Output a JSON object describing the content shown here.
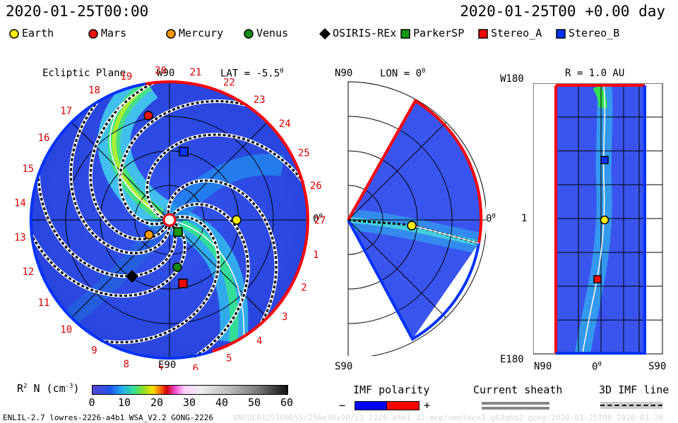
{
  "header": {
    "left_datetime": "2020-01-25T00:00",
    "right_datetime": "2020-01-25T00 +0.00 day"
  },
  "legend": {
    "items": [
      {
        "label": "Earth",
        "icon": "circle",
        "color": "#ffee00"
      },
      {
        "label": "Mars",
        "icon": "circle",
        "color": "#ee1111"
      },
      {
        "label": "Mercury",
        "icon": "circle",
        "color": "#ff9900"
      },
      {
        "label": "Venus",
        "icon": "circle",
        "color": "#118811"
      },
      {
        "label": "OSIRIS-REx",
        "icon": "diamond",
        "color": "#000000"
      },
      {
        "label": "ParkerSP",
        "icon": "square",
        "color": "#119911"
      },
      {
        "label": "Stereo_A",
        "icon": "square",
        "color": "#ff0000"
      },
      {
        "label": "Stereo_B",
        "icon": "square",
        "color": "#0033ff"
      }
    ]
  },
  "ecliptic": {
    "title": "Ecliptic Plane",
    "lat_label": "LAT = -5.5",
    "lat_deg": "0",
    "top_label": "W90",
    "bottom_label": "E90",
    "right_label": "0",
    "right_deg": "0",
    "rotation_numbers": [
      "1",
      "2",
      "3",
      "4",
      "5",
      "6",
      "7",
      "8",
      "9",
      "10",
      "11",
      "12",
      "13",
      "14",
      "15",
      "16",
      "17",
      "18",
      "19",
      "20",
      "21",
      "22",
      "23",
      "24",
      "25",
      "26",
      "27"
    ]
  },
  "meridional": {
    "top_label": "N90",
    "lon_label": "LON = 0",
    "lon_deg": "0",
    "bottom_label": "S90",
    "right_label": "0",
    "right_deg": "0"
  },
  "radial": {
    "title": "R = 1.0 AU",
    "top_left": "W180",
    "mid_left": "1",
    "bottom_left": "E180",
    "x_left": "N90",
    "x_mid": "0",
    "x_mid_deg": "0",
    "x_right": "S90"
  },
  "colorbar": {
    "label_main": "R",
    "label_sup": "2",
    "label_rest": " N (cm",
    "label_exp": "-3",
    "label_close": ")",
    "ticks": [
      "0",
      "10",
      "20",
      "30",
      "40",
      "50",
      "60"
    ]
  },
  "imf": {
    "title": "IMF polarity",
    "minus": "−",
    "plus": "+",
    "neg_color": "#0000ff",
    "pos_color": "#ff0000"
  },
  "sheath": {
    "title": "Current sheath"
  },
  "line3d": {
    "title": "3D IMF line"
  },
  "footer": {
    "model": "ENLIL-2.7 lowres-2226-a4b1 WSA_V2.2 GONG-2226",
    "watermark": "UNCUE0125100655/256x30x90/c1 2226-a4b1 32-mcp/umnloc=1.g63q6d2 gong-2020-01-25T00  2020-01-26"
  }
}
